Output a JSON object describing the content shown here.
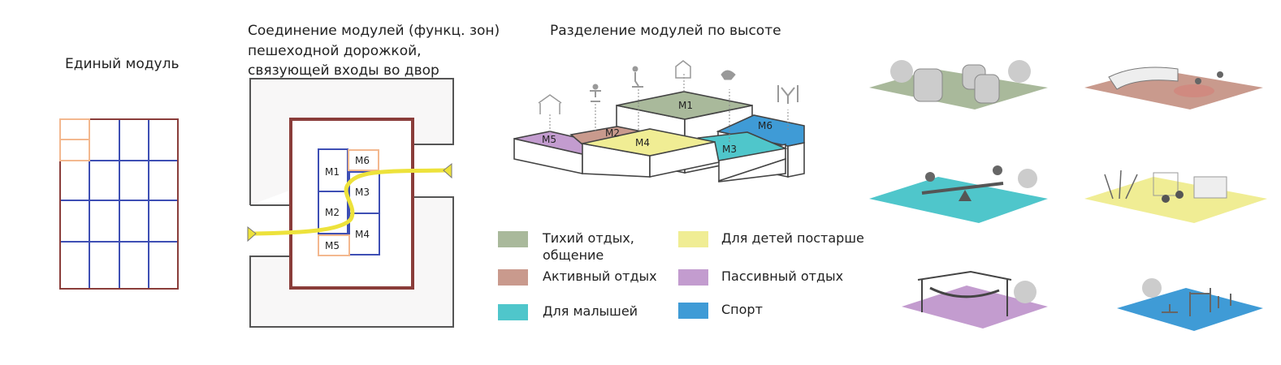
{
  "titles": {
    "single_module": "Единый модуль",
    "connection_line1": "Соединение модулей (функц. зон)",
    "connection_line2": "пешеходной дорожкой,",
    "connection_line3": "связующей входы во двор",
    "height_division": "Разделение модулей по высоте"
  },
  "modules": [
    "M1",
    "M2",
    "M3",
    "M4",
    "M5",
    "M6"
  ],
  "legend": [
    {
      "label_line1": "Тихий отдых,",
      "label_line2": "общение",
      "color": "#a9b99b"
    },
    {
      "label_line1": "Активный отдых",
      "color": "#c99a8d"
    },
    {
      "label_line1": "Для малышей",
      "color": "#4fc6cb"
    },
    {
      "label_line1": "Для детей постарше",
      "color": "#f0ed94"
    },
    {
      "label_line1": "Пассивный отдых",
      "color": "#c39ccf"
    },
    {
      "label_line1": "Спорт",
      "color": "#3f9bd6"
    }
  ],
  "colors": {
    "grid_border": "#8a3d3a",
    "grid_inner": "#3e4fb4",
    "module_orange": "#f3b88f",
    "path": "#ede23b",
    "wall": "#555555"
  }
}
